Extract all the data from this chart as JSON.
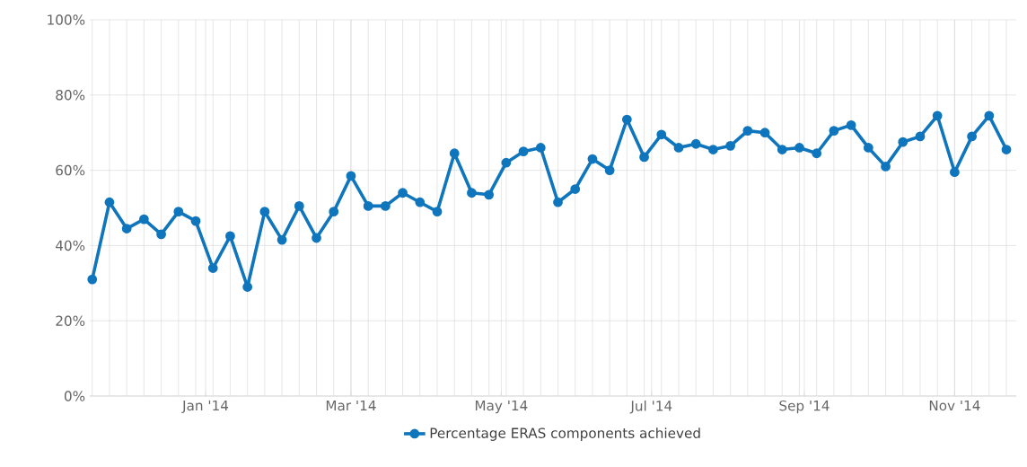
{
  "chart_data": {
    "type": "line",
    "x": [
      "2013-11-16",
      "2013-11-23",
      "2013-11-30",
      "2013-12-07",
      "2013-12-14",
      "2013-12-21",
      "2013-12-28",
      "2014-01-04",
      "2014-01-11",
      "2014-01-18",
      "2014-01-25",
      "2014-02-01",
      "2014-02-08",
      "2014-02-15",
      "2014-02-22",
      "2014-03-01",
      "2014-03-08",
      "2014-03-15",
      "2014-03-22",
      "2014-03-29",
      "2014-04-05",
      "2014-04-12",
      "2014-04-19",
      "2014-04-26",
      "2014-05-03",
      "2014-05-10",
      "2014-05-17",
      "2014-05-24",
      "2014-05-31",
      "2014-06-07",
      "2014-06-14",
      "2014-06-21",
      "2014-06-28",
      "2014-07-05",
      "2014-07-12",
      "2014-07-19",
      "2014-07-26",
      "2014-08-02",
      "2014-08-09",
      "2014-08-16",
      "2014-08-23",
      "2014-08-30",
      "2014-09-06",
      "2014-09-13",
      "2014-09-20",
      "2014-09-27",
      "2014-10-04",
      "2014-10-11",
      "2014-10-18",
      "2014-10-25",
      "2014-11-01",
      "2014-11-08",
      "2014-11-15",
      "2014-11-22"
    ],
    "series": [
      {
        "name": "Percentage ERAS components achieved",
        "color": "#0f75bc",
        "values": [
          31,
          51.5,
          44.5,
          47,
          43,
          49,
          46.5,
          34,
          42.5,
          29,
          49,
          41.5,
          50.5,
          42,
          49,
          58.5,
          50.5,
          50.5,
          54,
          51.5,
          49,
          64.5,
          54,
          53.5,
          62,
          65,
          66,
          51.5,
          55,
          63,
          60,
          73.5,
          63.5,
          69.5,
          66,
          67,
          65.5,
          66.5,
          70.5,
          70,
          65.5,
          66,
          64.5,
          70.5,
          72,
          66,
          61,
          67.5,
          69,
          74.5,
          59.5,
          69,
          74.5,
          65.5
        ]
      }
    ],
    "xlim": [
      "2013-11-15",
      "2014-11-26"
    ],
    "xticks": [
      {
        "value": "2014-01-01",
        "label": "Jan '14"
      },
      {
        "value": "2014-03-01",
        "label": "Mar '14"
      },
      {
        "value": "2014-05-01",
        "label": "May '14"
      },
      {
        "value": "2014-07-01",
        "label": "Jul '14"
      },
      {
        "value": "2014-09-01",
        "label": "Sep '14"
      },
      {
        "value": "2014-11-01",
        "label": "Nov '14"
      }
    ],
    "ylim": [
      0,
      100
    ],
    "yticks": [
      {
        "value": 0,
        "label": "0%"
      },
      {
        "value": 20,
        "label": "20%"
      },
      {
        "value": 40,
        "label": "40%"
      },
      {
        "value": 60,
        "label": "60%"
      },
      {
        "value": 80,
        "label": "80%"
      },
      {
        "value": 100,
        "label": "100%"
      }
    ],
    "grid": true,
    "legend": "bottom",
    "marker": "circle",
    "line_style": "solid"
  }
}
